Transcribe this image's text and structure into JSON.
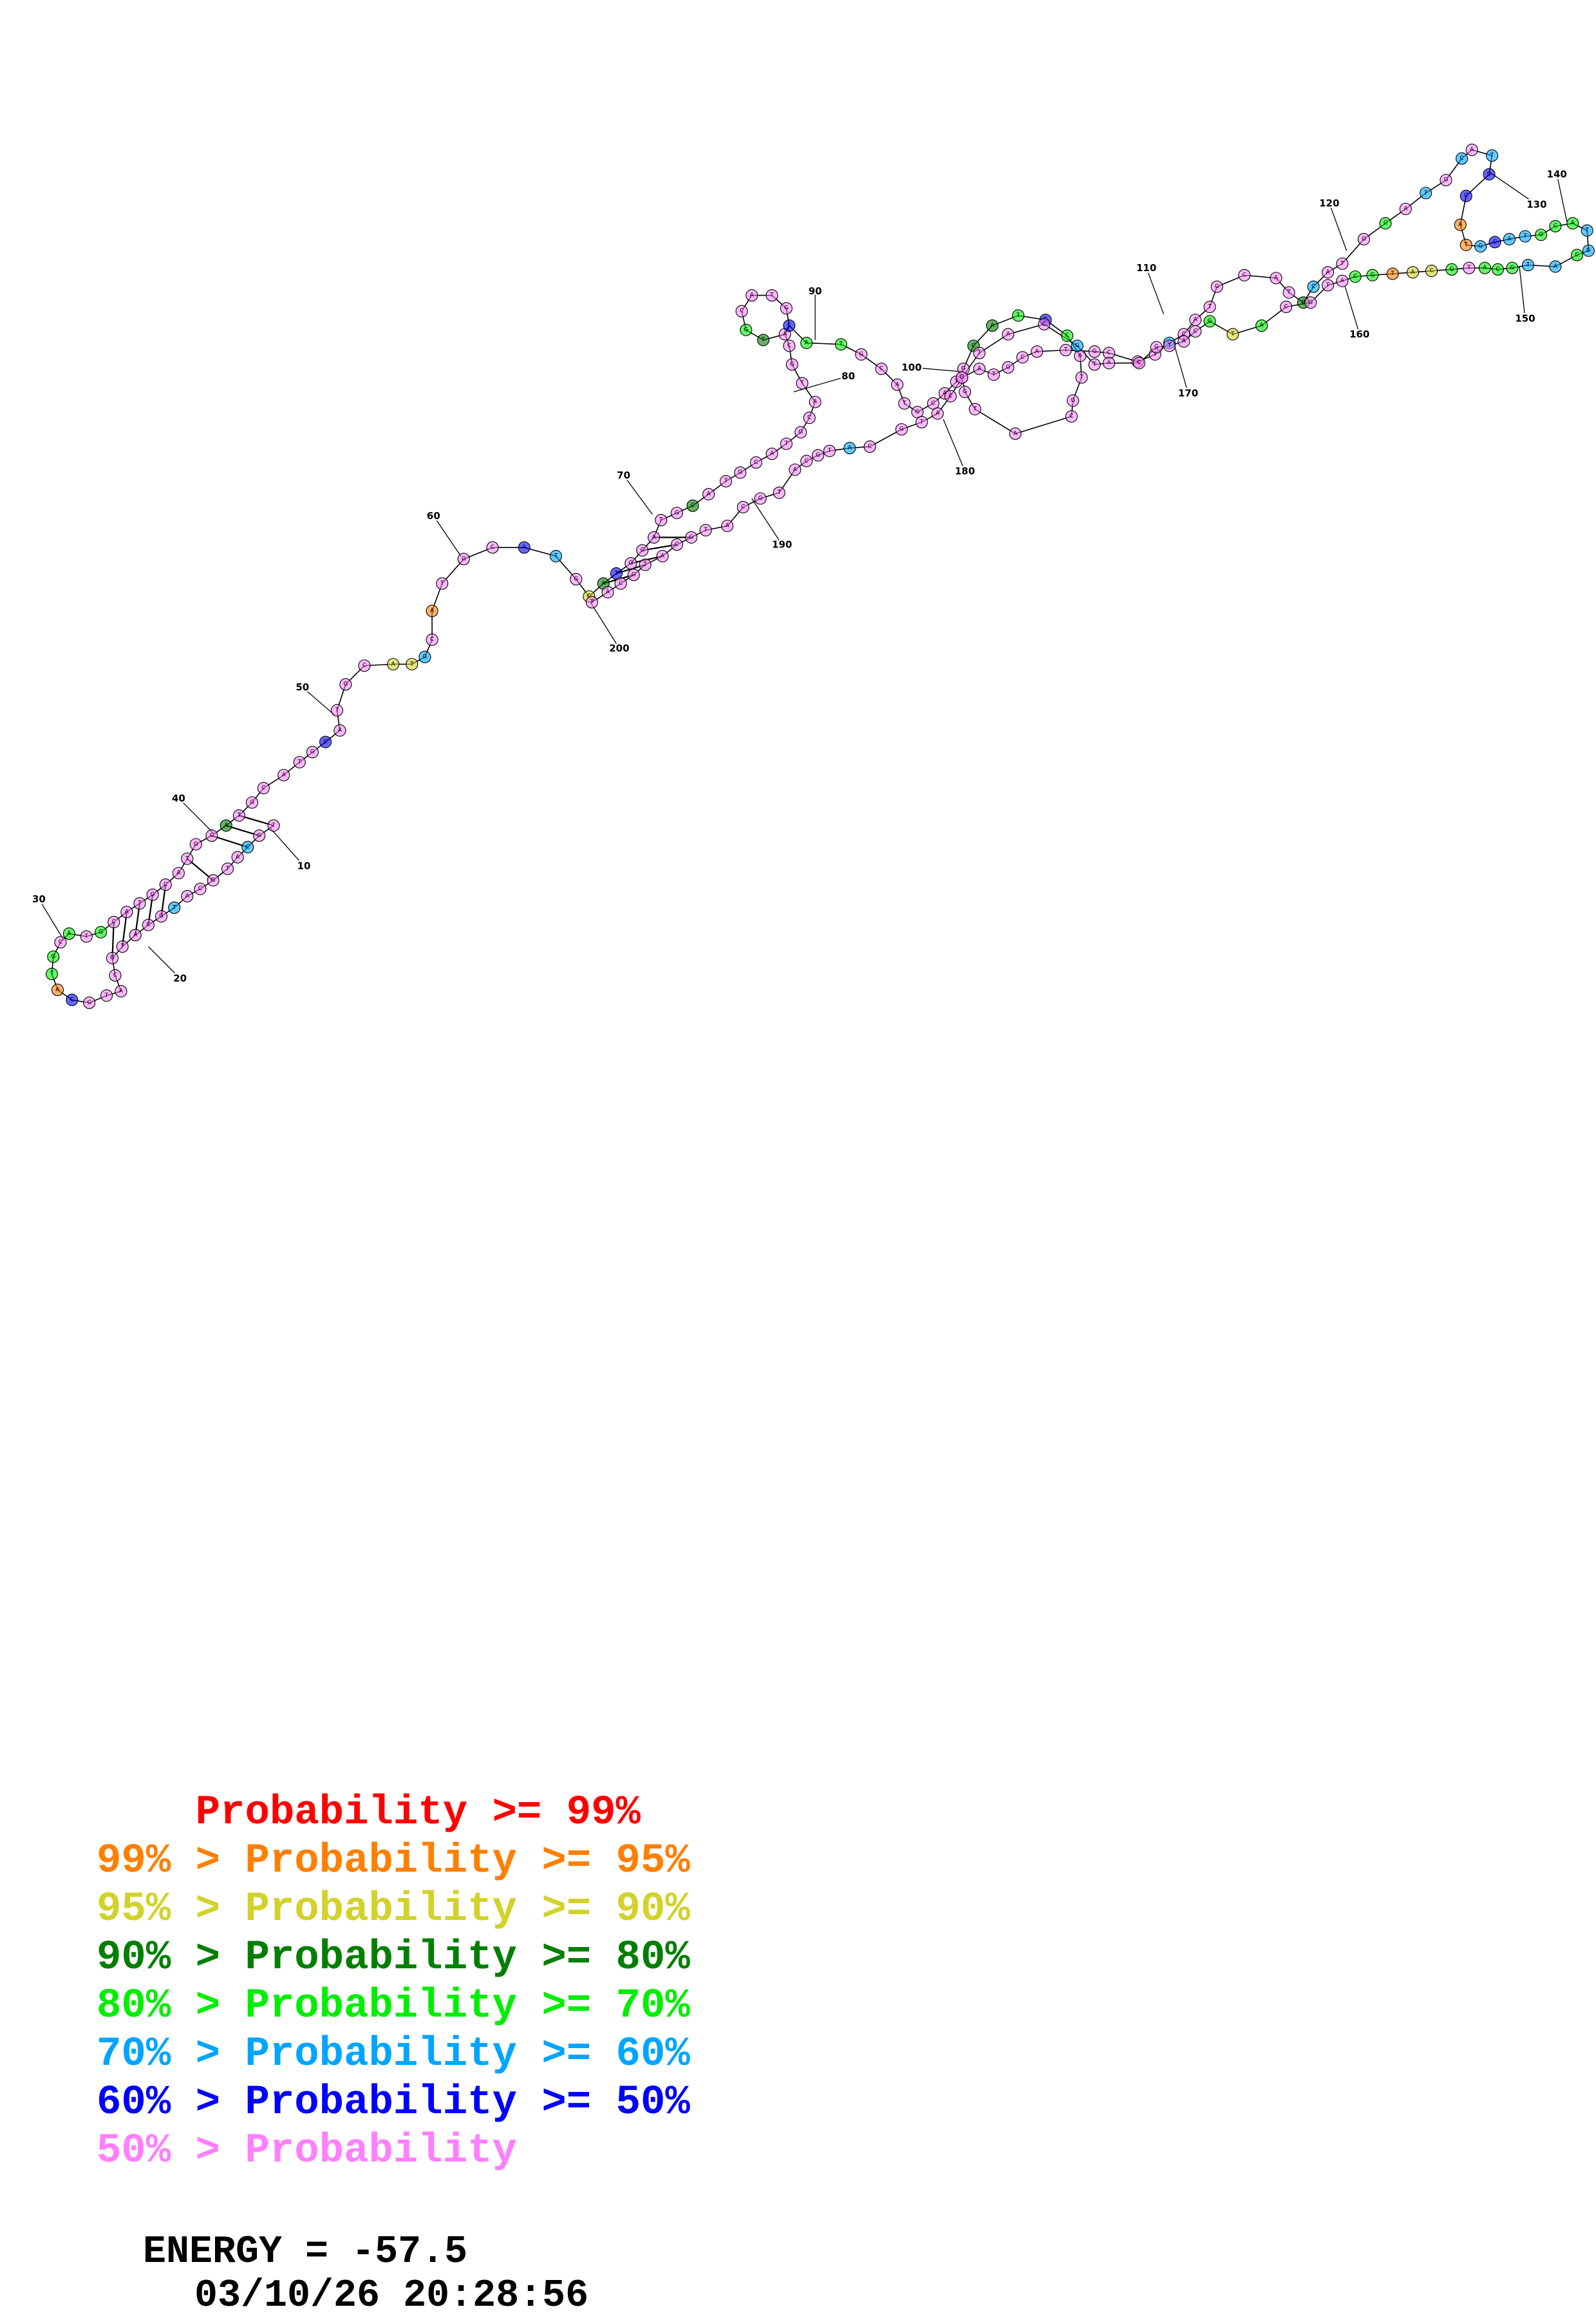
{
  "colors": {
    "p99": "#ff0000",
    "p95": "#ff7f00",
    "p90": "#d2d22a",
    "p80": "#007f00",
    "p70": "#00ee00",
    "p60": "#00a5ff",
    "p50": "#0000ff",
    "low": "#ff7fff"
  },
  "diagram": {
    "position_labels": [
      "10",
      "20",
      "30",
      "40",
      "50",
      "60",
      "70",
      "80",
      "90",
      "100",
      "110",
      "120",
      "130",
      "140",
      "150",
      "160",
      "170",
      "180",
      "190",
      "200"
    ],
    "nucleotide_letters": [
      "A",
      "C",
      "G",
      "T"
    ]
  },
  "legend": [
    {
      "prefix": "    ",
      "text": "Probability >= 99%",
      "color_key": "p99"
    },
    {
      "prefix": "99% > ",
      "text": "Probability >= 95%",
      "color_key": "p95"
    },
    {
      "prefix": "95% > ",
      "text": "Probability >= 90%",
      "color_key": "p90"
    },
    {
      "prefix": "90% > ",
      "text": "Probability >= 80%",
      "color_key": "p80"
    },
    {
      "prefix": "80% > ",
      "text": "Probability >= 70%",
      "color_key": "p70"
    },
    {
      "prefix": "70% > ",
      "text": "Probability >= 60%",
      "color_key": "p60"
    },
    {
      "prefix": "60% > ",
      "text": "Probability >= 50%",
      "color_key": "p50"
    },
    {
      "prefix": "50% > ",
      "text": "Probability",
      "color_key": "low"
    }
  ],
  "footer": {
    "energy": "ENERGY = -57.5",
    "timestamp": "03/10/26 20:28:56"
  }
}
